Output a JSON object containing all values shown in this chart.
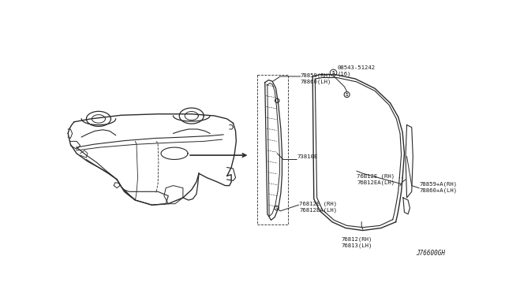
{
  "background_color": "#ffffff",
  "fig_width": 6.4,
  "fig_height": 3.72,
  "dpi": 100,
  "line_color": "#2a2a2a",
  "text_color": "#1a1a1a",
  "font_size": 5.2,
  "labels": {
    "lbl_78859_rh": "78859(RH)",
    "lbl_78860_lh": "78860(LH)",
    "lbl_08543": "08543-51242",
    "lbl_16": "(16)",
    "lbl_73810e": "73810E",
    "lbl_76812e_rh": "76812E (RH)",
    "lbl_76812ea_lh": "76812EA(LH)",
    "lbl_76b12e_rh": "76B12E (RH)",
    "lbl_76b12ea_lh": "76B12EA(LH)",
    "lbl_78859a_rh": "78859+A(RH)",
    "lbl_78860a_lh": "78860+A(LH)",
    "lbl_76812_rh": "76812(RH)",
    "lbl_76813_lh": "76813(LH)",
    "diagram_code": "J76600GH"
  }
}
